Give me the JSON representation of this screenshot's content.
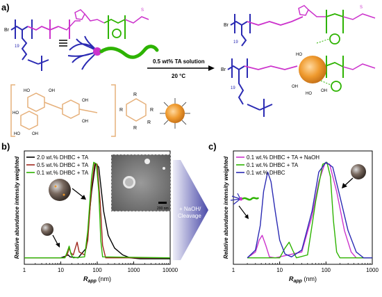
{
  "panels": {
    "a": "a)",
    "b": "b)",
    "c": "c)"
  },
  "reaction": {
    "solution": "0.5 wt% TA solution",
    "temperature": "20 °C"
  },
  "structure_labels": {
    "br": "Br",
    "n": "n",
    "m": "m",
    "k19": "19",
    "r": "R",
    "o": "O",
    "n_atom": "N",
    "s": "S",
    "h": "H",
    "ho": "HO",
    "oh": "OH"
  },
  "arrow_label": "+ NaOH/ Cleavage",
  "arrow_label_lines": [
    "+ NaOH/",
    "Cleavage"
  ],
  "scale_bar": "200 nm",
  "colors": {
    "black": "#000000",
    "brown": "#a0281e",
    "green": "#2db300",
    "magenta": "#cc33cc",
    "blue": "#2a2ab3",
    "orange": "#e8962e",
    "ta_beige": "#e6b07a"
  },
  "chart_data": [
    {
      "type": "line",
      "panel": "b",
      "xlabel": "R_app (nm)",
      "xlabel_main": "R",
      "xlabel_sub": "app",
      "xlabel_unit": " (nm)",
      "ylabel": "Relative abundance intensity weighted",
      "xscale": "log",
      "xlim": [
        1,
        10000
      ],
      "xticks": [
        1,
        10,
        100,
        1000,
        10000
      ],
      "xtick_labels": [
        "1",
        "10",
        "100",
        "1000",
        "10000"
      ],
      "series": [
        {
          "name": "2.0 wt.% DHBC + TA",
          "color": "#000000",
          "points": [
            [
              1,
              0.02
            ],
            [
              10,
              0.02
            ],
            [
              14,
              0.04
            ],
            [
              16,
              0.05
            ],
            [
              18,
              0.03
            ],
            [
              30,
              0.02
            ],
            [
              50,
              0.12
            ],
            [
              70,
              0.7
            ],
            [
              90,
              0.99
            ],
            [
              110,
              0.95
            ],
            [
              150,
              0.5
            ],
            [
              200,
              0.25
            ],
            [
              300,
              0.12
            ],
            [
              500,
              0.05
            ],
            [
              800,
              0.02
            ],
            [
              1500,
              0.01
            ],
            [
              10000,
              0.01
            ]
          ]
        },
        {
          "name": "0.5 wt.% DHBC + TA",
          "color": "#a0281e",
          "points": [
            [
              1,
              0.02
            ],
            [
              12,
              0.02
            ],
            [
              15,
              0.05
            ],
            [
              17,
              0.12
            ],
            [
              19,
              0.07
            ],
            [
              22,
              0.05
            ],
            [
              25,
              0.12
            ],
            [
              28,
              0.18
            ],
            [
              32,
              0.08
            ],
            [
              45,
              0.05
            ],
            [
              55,
              0.2
            ],
            [
              70,
              0.75
            ],
            [
              85,
              0.99
            ],
            [
              100,
              0.98
            ],
            [
              120,
              0.6
            ],
            [
              140,
              0.15
            ],
            [
              170,
              0.02
            ],
            [
              10000,
              0.02
            ]
          ]
        },
        {
          "name": "0.1 wt.% DHBC + TA",
          "color": "#2db300",
          "points": [
            [
              1,
              0.02
            ],
            [
              13,
              0.02
            ],
            [
              15,
              0.08
            ],
            [
              17,
              0.14
            ],
            [
              19,
              0.06
            ],
            [
              22,
              0.02
            ],
            [
              45,
              0.03
            ],
            [
              55,
              0.3
            ],
            [
              70,
              0.85
            ],
            [
              80,
              1.0
            ],
            [
              95,
              0.98
            ],
            [
              110,
              0.7
            ],
            [
              125,
              0.2
            ],
            [
              140,
              0.03
            ],
            [
              10000,
              0.02
            ]
          ]
        }
      ]
    },
    {
      "type": "line",
      "panel": "c",
      "xlabel": "R_app (nm)",
      "xlabel_main": "R",
      "xlabel_sub": "app",
      "xlabel_unit": " (nm)",
      "ylabel": "Relative abundance intensity weighted",
      "xscale": "log",
      "xlim": [
        1,
        1000
      ],
      "xticks": [
        1,
        10,
        100,
        1000
      ],
      "xtick_labels": [
        "1",
        "10",
        "100",
        "1000"
      ],
      "series": [
        {
          "name": "0.1 wt.% DHBC + TA + NaOH",
          "color": "#cc33cc",
          "points": [
            [
              2,
              0.02
            ],
            [
              3,
              0.08
            ],
            [
              3.6,
              0.2
            ],
            [
              4.2,
              0.25
            ],
            [
              5,
              0.15
            ],
            [
              6,
              0.03
            ],
            [
              8,
              0.02
            ],
            [
              30,
              0.08
            ],
            [
              50,
              0.45
            ],
            [
              70,
              0.8
            ],
            [
              95,
              0.99
            ],
            [
              120,
              0.98
            ],
            [
              170,
              0.7
            ],
            [
              250,
              0.3
            ],
            [
              350,
              0.08
            ],
            [
              450,
              0.02
            ],
            [
              1000,
              0.02
            ]
          ]
        },
        {
          "name": "0.1 wt.% DHBC + TA",
          "color": "#2db300",
          "points": [
            [
              2,
              0.02
            ],
            [
              10,
              0.02
            ],
            [
              13,
              0.12
            ],
            [
              16,
              0.18
            ],
            [
              19,
              0.1
            ],
            [
              23,
              0.02
            ],
            [
              40,
              0.05
            ],
            [
              60,
              0.6
            ],
            [
              85,
              0.98
            ],
            [
              105,
              1.0
            ],
            [
              125,
              0.85
            ],
            [
              145,
              0.4
            ],
            [
              170,
              0.08
            ],
            [
              200,
              0.02
            ],
            [
              1000,
              0.02
            ]
          ]
        },
        {
          "name": "0.1 wt.% DHBC",
          "color": "#2a2ab3",
          "points": [
            [
              2,
              0.02
            ],
            [
              3,
              0.1
            ],
            [
              3.8,
              0.35
            ],
            [
              4.5,
              0.7
            ],
            [
              5.5,
              0.9
            ],
            [
              6.5,
              0.8
            ],
            [
              8,
              0.5
            ],
            [
              10,
              0.2
            ],
            [
              13,
              0.06
            ],
            [
              18,
              0.03
            ],
            [
              30,
              0.1
            ],
            [
              50,
              0.5
            ],
            [
              70,
              0.9
            ],
            [
              100,
              1.0
            ],
            [
              140,
              0.95
            ],
            [
              200,
              0.65
            ],
            [
              300,
              0.3
            ],
            [
              450,
              0.08
            ],
            [
              650,
              0.02
            ],
            [
              1000,
              0.02
            ]
          ]
        }
      ]
    }
  ]
}
